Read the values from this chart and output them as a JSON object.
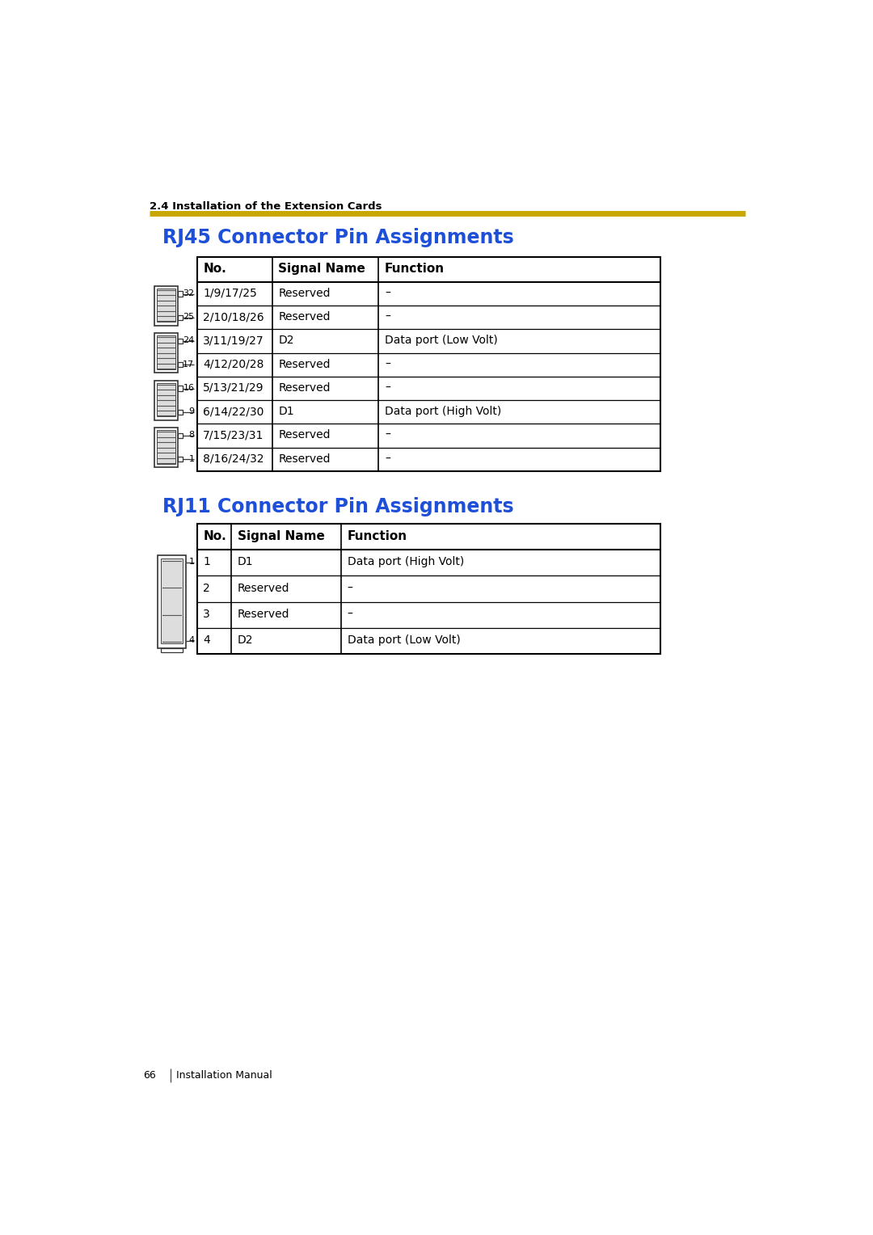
{
  "page_bg": "#ffffff",
  "section_label": "2.4 Installation of the Extension Cards",
  "gold_line_color": "#C8A800",
  "rj45_title": "RJ45 Connector Pin Assignments",
  "rj11_title": "RJ11 Connector Pin Assignments",
  "title_color": "#1E4FD8",
  "rj45_headers": [
    "No.",
    "Signal Name",
    "Function"
  ],
  "rj45_rows": [
    [
      "1/9/17/25",
      "Reserved",
      "–"
    ],
    [
      "2/10/18/26",
      "Reserved",
      "–"
    ],
    [
      "3/11/19/27",
      "D2",
      "Data port (Low Volt)"
    ],
    [
      "4/12/20/28",
      "Reserved",
      "–"
    ],
    [
      "5/13/21/29",
      "Reserved",
      "–"
    ],
    [
      "6/14/22/30",
      "D1",
      "Data port (High Volt)"
    ],
    [
      "7/15/23/31",
      "Reserved",
      "–"
    ],
    [
      "8/16/24/32",
      "Reserved",
      "–"
    ]
  ],
  "rj11_headers": [
    "No.",
    "Signal Name",
    "Function"
  ],
  "rj11_rows": [
    [
      "1",
      "D1",
      "Data port (High Volt)"
    ],
    [
      "2",
      "Reserved",
      "–"
    ],
    [
      "3",
      "Reserved",
      "–"
    ],
    [
      "4",
      "D2",
      "Data port (Low Volt)"
    ]
  ],
  "text_color": "#000000",
  "section_fs": 9.5,
  "title_fs": 17,
  "header_fs": 11,
  "cell_fs": 10,
  "footer_num": "66",
  "footer_text": "Installation Manual"
}
